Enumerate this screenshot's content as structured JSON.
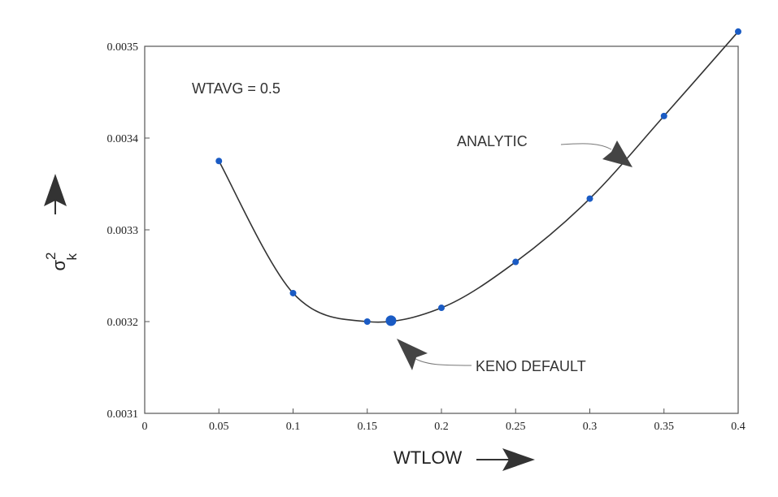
{
  "chart_data": {
    "type": "scatter",
    "title": "",
    "xlabel": "WTLOW",
    "ylabel": "σ",
    "ylabel_superscript": "2",
    "ylabel_subscript": "k",
    "xlim": [
      0,
      0.4
    ],
    "ylim": [
      0.0031,
      0.0035
    ],
    "x_ticks": [
      "0",
      "0.05",
      "0.1",
      "0.15",
      "0.2",
      "0.25",
      "0.3",
      "0.35",
      "0.4"
    ],
    "y_ticks": [
      "0.0031",
      "0.0032",
      "0.0033",
      "0.0034",
      "0.0035"
    ],
    "grid": false,
    "series": [
      {
        "name": "ANALYTIC",
        "x": [
          0.05,
          0.1,
          0.15,
          0.2,
          0.25,
          0.3,
          0.35,
          0.4
        ],
        "y": [
          0.003375,
          0.003231,
          0.0032,
          0.003215,
          0.003265,
          0.003334,
          0.003424,
          0.003516
        ]
      }
    ],
    "highlight_point": {
      "x": 0.166,
      "y": 0.003201
    },
    "annotations": {
      "param": "WTAVG = 0.5",
      "analytic": "ANALYTIC",
      "keno": "KENO DEFAULT"
    },
    "colors": {
      "point": "#1a5bc4",
      "line": "#333333",
      "axis": "#555555"
    }
  }
}
